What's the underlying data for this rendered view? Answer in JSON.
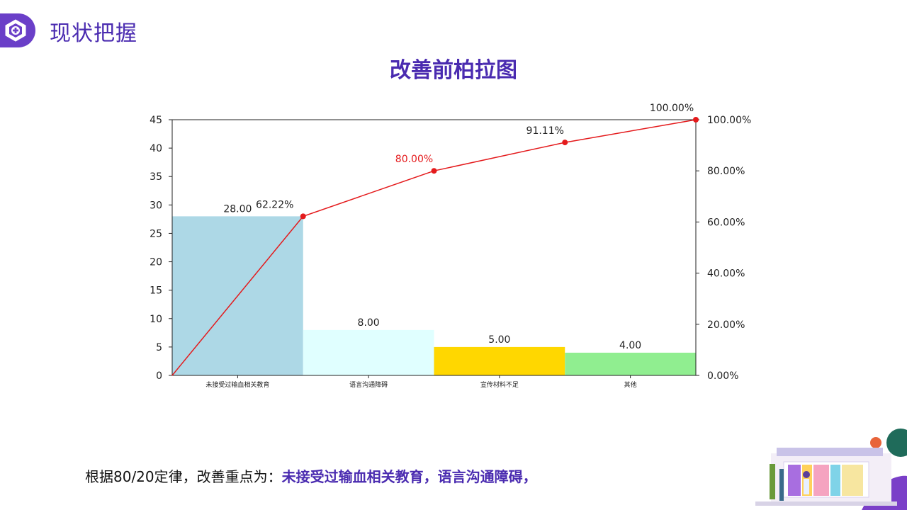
{
  "header": {
    "section_title": "现状把握",
    "chart_title": "改善前柏拉图"
  },
  "chart_data": {
    "type": "bar",
    "categories": [
      "未接受过输血相关教育",
      "语言沟通障碍",
      "宣传材料不足",
      "其他"
    ],
    "values": [
      28,
      8,
      5,
      4
    ],
    "value_labels": [
      "28.00",
      "8.00",
      "5.00",
      "4.00"
    ],
    "bar_colors": [
      "#add8e6",
      "#e0ffff",
      "#ffd700",
      "#90ee90"
    ],
    "cumulative": {
      "type": "line",
      "color": "#e41a1c",
      "x_points": [
        "",
        "未接受过输血相关教育",
        "语言沟通障碍",
        "宣传材料不足",
        "其他"
      ],
      "values": [
        0,
        62.22,
        80.0,
        91.11,
        100.0
      ],
      "labels": [
        "62.22%",
        "80.00%",
        "91.11%",
        "100.00%"
      ],
      "highlight_label": "80.00%"
    },
    "ylim": [
      0,
      45
    ],
    "yticks": [
      "0",
      "5",
      "10",
      "15",
      "20",
      "25",
      "30",
      "35",
      "40",
      "45"
    ],
    "y2lim": [
      0,
      100
    ],
    "y2ticks": [
      "0.00%",
      "20.00%",
      "40.00%",
      "60.00%",
      "80.00%",
      "100.00%"
    ],
    "xlabel": "",
    "ylabel": ""
  },
  "footer": {
    "prefix": "根据80/20定律，改善重点为：",
    "highlight": "未接受过输血相关教育，语言沟通障碍，"
  },
  "colors": {
    "accent": "#4a2bb0",
    "badge": "#6a3fc8",
    "line": "#e41a1c"
  },
  "icons": {
    "badge": "hexagon-plus-icon",
    "decoration": "building-illustration"
  }
}
